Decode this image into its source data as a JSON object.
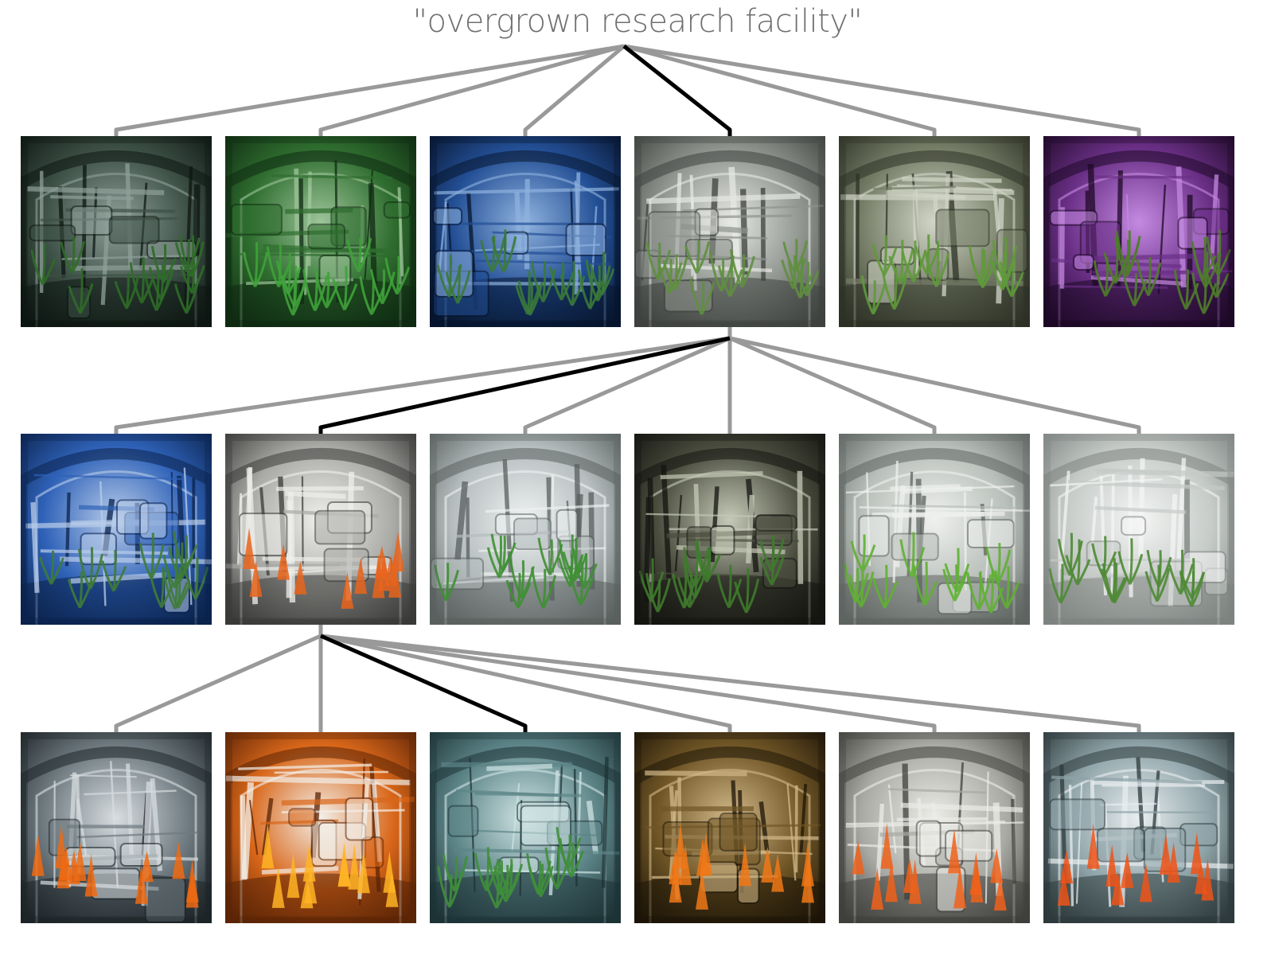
{
  "diagram": {
    "title": "\"overgrown research facility\"",
    "levels": [
      {
        "selected_index": 3,
        "images": [
          {
            "name": "dark-green-facility",
            "palette": [
              "#0d1612",
              "#3d5046",
              "#8fa09a",
              "#2f6b28"
            ]
          },
          {
            "name": "green-greenhouse-facility",
            "palette": [
              "#0f2a12",
              "#2f6d2f",
              "#9dc59a",
              "#3fa23a"
            ]
          },
          {
            "name": "blue-facility",
            "palette": [
              "#07152e",
              "#234f95",
              "#8fb2de",
              "#3b7a3a"
            ]
          },
          {
            "name": "white-grey-facility",
            "palette": [
              "#3e423e",
              "#8f948f",
              "#e6e8e4",
              "#5f8f3f"
            ]
          },
          {
            "name": "grey-green-facility",
            "palette": [
              "#2e3226",
              "#767e68",
              "#d2d6c8",
              "#5f9a3a"
            ]
          },
          {
            "name": "purple-facility",
            "palette": [
              "#1e0a26",
              "#6a2f86",
              "#c489e0",
              "#4f7d2a"
            ]
          }
        ]
      },
      {
        "selected_index": 1,
        "images": [
          {
            "name": "blue-white-facility",
            "palette": [
              "#0b234d",
              "#2f62b8",
              "#b9cdea",
              "#3f7b3a"
            ]
          },
          {
            "name": "white-facility-with-fire",
            "palette": [
              "#3a3a38",
              "#a9aaa6",
              "#efefec",
              "#e9641c"
            ]
          },
          {
            "name": "white-facility-plants",
            "palette": [
              "#59605f",
              "#b5bdbe",
              "#eef1f1",
              "#3f8f34"
            ]
          },
          {
            "name": "dark-cage-facility",
            "palette": [
              "#141410",
              "#4a4d3e",
              "#c5c9b7",
              "#3f7a2d"
            ]
          },
          {
            "name": "white-green-facility",
            "palette": [
              "#5e6460",
              "#b9bfba",
              "#eff1ee",
              "#5fb033"
            ]
          },
          {
            "name": "white-swirl-facility",
            "palette": [
              "#7d8380",
              "#c6cbc8",
              "#f4f5f4",
              "#4e8a34"
            ]
          }
        ]
      },
      {
        "selected_index": 2,
        "images": [
          {
            "name": "grey-fire-facility",
            "palette": [
              "#1e2428",
              "#6e7a80",
              "#d7dde0",
              "#f06a12"
            ]
          },
          {
            "name": "orange-fire-facility",
            "palette": [
              "#5b2406",
              "#d9671a",
              "#f3f0ea",
              "#ffb424"
            ]
          },
          {
            "name": "teal-water-facility",
            "palette": [
              "#1d3336",
              "#5d8588",
              "#cfe3e4",
              "#3f8f3a"
            ]
          },
          {
            "name": "brown-machinery-facility",
            "palette": [
              "#1e1508",
              "#705626",
              "#d2b98a",
              "#f07818"
            ]
          },
          {
            "name": "white-fire-facility",
            "palette": [
              "#40403c",
              "#a9aaa4",
              "#ecece8",
              "#f0621a"
            ]
          },
          {
            "name": "snowy-fire-facility",
            "palette": [
              "#2e3a3c",
              "#8ea3a8",
              "#e9eef0",
              "#ee5418"
            ]
          }
        ]
      }
    ]
  }
}
